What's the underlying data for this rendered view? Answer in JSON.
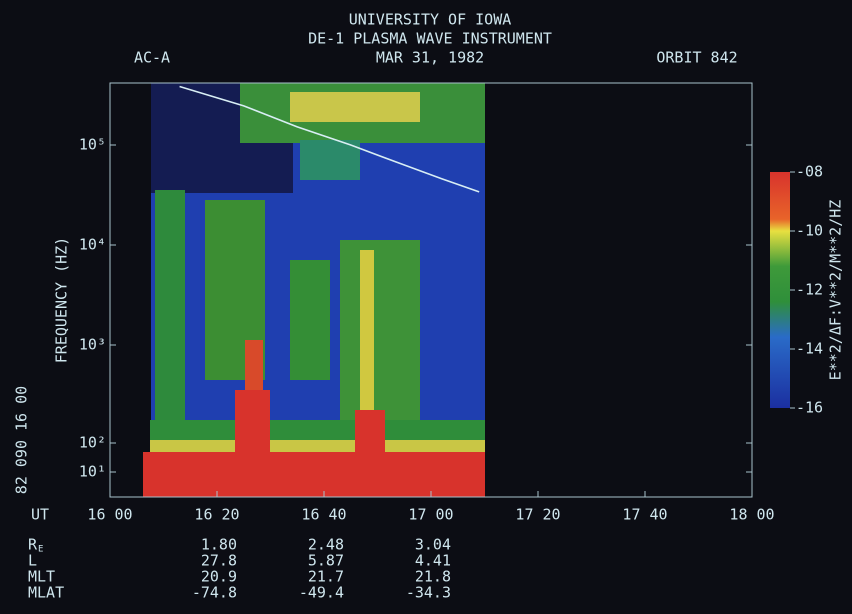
{
  "chart_data": {
    "type": "spectrogram",
    "title": [
      "UNIVERSITY OF IOWA",
      "DE-1 PLASMA WAVE INSTRUMENT",
      "MAR 31, 1982"
    ],
    "left_header": "AC-A",
    "right_header": "ORBIT 842",
    "ylabel": "FREQUENCY (HZ)",
    "side_label": "82 090 16 00",
    "xlabel": "UT",
    "xlim": [
      960,
      1080
    ],
    "xticks": [
      {
        "value": 960,
        "label": "16 00"
      },
      {
        "value": 980,
        "label": "16 20"
      },
      {
        "value": 1000,
        "label": "16 40"
      },
      {
        "value": 1020,
        "label": "17 00"
      },
      {
        "value": 1040,
        "label": "17 20"
      },
      {
        "value": 1060,
        "label": "17 40"
      },
      {
        "value": 1080,
        "label": "18 00"
      }
    ],
    "ylim": [
      5,
      400000
    ],
    "yticks": [
      {
        "value": 10,
        "label": "10¹"
      },
      {
        "value": 100,
        "label": "10²"
      },
      {
        "value": 1000,
        "label": "10³"
      },
      {
        "value": 10000,
        "label": "10⁴"
      },
      {
        "value": 100000,
        "label": "10⁵"
      }
    ],
    "series": [
      {
        "color": "#d8eef4",
        "x": [
          973,
          985,
          995,
          1005,
          1014,
          1022,
          1029
        ],
        "values": [
          370000,
          240000,
          150000,
          100000,
          66000,
          46000,
          34000
        ]
      }
    ],
    "colorbar": {
      "label": "E**2/ΔF:V**2/M**2/HZ",
      "clim": [
        -16,
        -8
      ],
      "ticks": [
        {
          "value": -8,
          "label": "-08"
        },
        {
          "value": -10,
          "label": "-10"
        },
        {
          "value": -12,
          "label": "-12"
        },
        {
          "value": -14,
          "label": "-14"
        },
        {
          "value": -16,
          "label": "-16"
        }
      ]
    },
    "ephemeris": {
      "times": [
        980,
        1000,
        1020
      ],
      "rows": [
        {
          "label": "R",
          "subscript": "E",
          "values": [
            "1.80",
            "2.48",
            "3.04"
          ]
        },
        {
          "label": "L",
          "values": [
            "27.8",
            "5.87",
            "4.41"
          ]
        },
        {
          "label": "MLT",
          "values": [
            "20.9",
            "21.7",
            "21.8"
          ]
        },
        {
          "label": "MLAT",
          "values": [
            "-74.8",
            "-49.4",
            "-34.3"
          ]
        }
      ]
    }
  }
}
